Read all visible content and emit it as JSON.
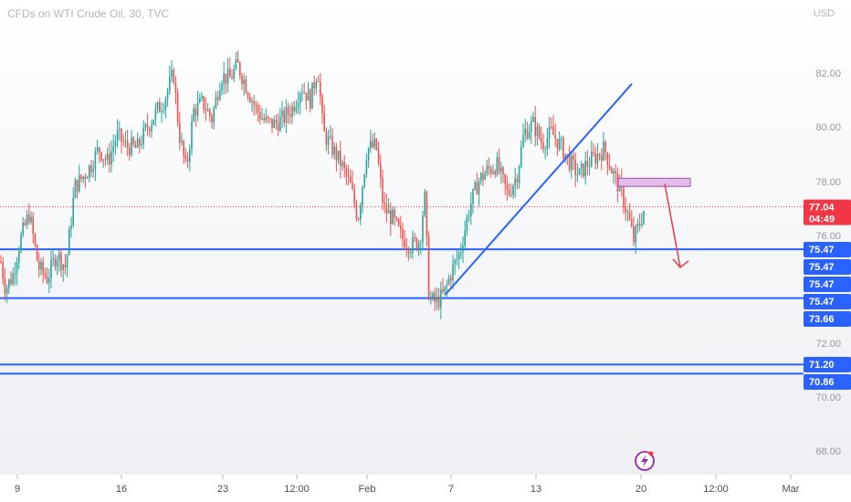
{
  "header": {
    "symbol_title": "CFDs on WTI Crude Oil, 30, TVC",
    "currency": "USD"
  },
  "colors": {
    "up": "#26a69a",
    "down": "#ef5350",
    "level_line": "#2962ff",
    "trend_line": "#2962ff",
    "zone_fill": "#e1bee7",
    "zone_border": "#ab47bc",
    "arrow": "#f23645",
    "price_tag": "#f23645",
    "level_tag": "#2962ff"
  },
  "chart_data": {
    "type": "candlestick",
    "title": "CFDs on WTI Crude Oil, 30, TVC",
    "ylabel": "USD",
    "ylim": [
      66.9,
      84.4
    ],
    "grid": false,
    "y_ticks": [
      "82.00",
      "80.00",
      "78.00",
      "76.00",
      "72.00",
      "70.00",
      "68.00"
    ],
    "x_ticks": [
      "9",
      "16",
      "23",
      "12:00",
      "Feb",
      "7",
      "13",
      "20",
      "12:00",
      "Mar"
    ],
    "price_path": [
      {
        "x": 0,
        "y": 75.2
      },
      {
        "x": 6,
        "y": 74.0
      },
      {
        "x": 14,
        "y": 74.5
      },
      {
        "x": 22,
        "y": 75.8
      },
      {
        "x": 32,
        "y": 76.8
      },
      {
        "x": 42,
        "y": 74.8
      },
      {
        "x": 52,
        "y": 74.4
      },
      {
        "x": 62,
        "y": 75.3
      },
      {
        "x": 72,
        "y": 74.8
      },
      {
        "x": 82,
        "y": 77.8
      },
      {
        "x": 92,
        "y": 78.2
      },
      {
        "x": 100,
        "y": 78.6
      },
      {
        "x": 108,
        "y": 79.2
      },
      {
        "x": 118,
        "y": 78.7
      },
      {
        "x": 128,
        "y": 79.7
      },
      {
        "x": 138,
        "y": 79.3
      },
      {
        "x": 150,
        "y": 79.2
      },
      {
        "x": 160,
        "y": 79.9
      },
      {
        "x": 170,
        "y": 80.5
      },
      {
        "x": 180,
        "y": 81.0
      },
      {
        "x": 190,
        "y": 82.0
      },
      {
        "x": 196,
        "y": 79.8
      },
      {
        "x": 204,
        "y": 78.4
      },
      {
        "x": 212,
        "y": 80.6
      },
      {
        "x": 222,
        "y": 80.9
      },
      {
        "x": 232,
        "y": 80.3
      },
      {
        "x": 242,
        "y": 81.9
      },
      {
        "x": 252,
        "y": 81.8
      },
      {
        "x": 260,
        "y": 82.3
      },
      {
        "x": 270,
        "y": 81.5
      },
      {
        "x": 280,
        "y": 80.7
      },
      {
        "x": 290,
        "y": 80.2
      },
      {
        "x": 300,
        "y": 80.1
      },
      {
        "x": 310,
        "y": 80.3
      },
      {
        "x": 320,
        "y": 80.7
      },
      {
        "x": 330,
        "y": 81.5
      },
      {
        "x": 340,
        "y": 81.0
      },
      {
        "x": 348,
        "y": 82.2
      },
      {
        "x": 354,
        "y": 79.8
      },
      {
        "x": 364,
        "y": 79.2
      },
      {
        "x": 374,
        "y": 78.6
      },
      {
        "x": 384,
        "y": 77.8
      },
      {
        "x": 392,
        "y": 76.6
      },
      {
        "x": 402,
        "y": 79.2
      },
      {
        "x": 412,
        "y": 79.3
      },
      {
        "x": 420,
        "y": 77.0
      },
      {
        "x": 430,
        "y": 76.6
      },
      {
        "x": 440,
        "y": 75.9
      },
      {
        "x": 450,
        "y": 75.6
      },
      {
        "x": 460,
        "y": 75.8
      },
      {
        "x": 465,
        "y": 77.5
      },
      {
        "x": 470,
        "y": 73.6
      },
      {
        "x": 478,
        "y": 73.5
      },
      {
        "x": 486,
        "y": 73.8
      },
      {
        "x": 494,
        "y": 74.6
      },
      {
        "x": 504,
        "y": 75.4
      },
      {
        "x": 514,
        "y": 77.0
      },
      {
        "x": 524,
        "y": 78.0
      },
      {
        "x": 534,
        "y": 78.4
      },
      {
        "x": 544,
        "y": 78.6
      },
      {
        "x": 556,
        "y": 77.5
      },
      {
        "x": 566,
        "y": 78.2
      },
      {
        "x": 574,
        "y": 79.8
      },
      {
        "x": 584,
        "y": 80.1
      },
      {
        "x": 594,
        "y": 79.4
      },
      {
        "x": 604,
        "y": 79.8
      },
      {
        "x": 614,
        "y": 79.3
      },
      {
        "x": 624,
        "y": 78.7
      },
      {
        "x": 634,
        "y": 78.2
      },
      {
        "x": 642,
        "y": 78.6
      },
      {
        "x": 652,
        "y": 78.9
      },
      {
        "x": 662,
        "y": 79.2
      },
      {
        "x": 670,
        "y": 78.4
      },
      {
        "x": 680,
        "y": 77.6
      },
      {
        "x": 688,
        "y": 76.7
      },
      {
        "x": 694,
        "y": 75.8
      },
      {
        "x": 700,
        "y": 76.4
      },
      {
        "x": 706,
        "y": 77.0
      }
    ],
    "horizontal_levels": [
      75.47,
      73.66,
      71.2,
      70.86
    ],
    "last_price": "77.04",
    "countdown": "04:49",
    "level_tags": [
      "75.47",
      "75.47",
      "75.47",
      "75.47",
      "73.66",
      "71.20",
      "70.86"
    ],
    "annotations": [
      {
        "type": "trendline",
        "start": {
          "x": 488,
          "y": 73.8
        },
        "end": {
          "x": 692,
          "y": 81.6
        }
      },
      {
        "type": "zone",
        "x": [
          677,
          756
        ],
        "y": [
          77.8,
          78.1
        ]
      },
      {
        "type": "arrow",
        "start": {
          "x": 728,
          "y": 77.9
        },
        "end": {
          "x": 745,
          "y": 74.8
        }
      }
    ]
  }
}
